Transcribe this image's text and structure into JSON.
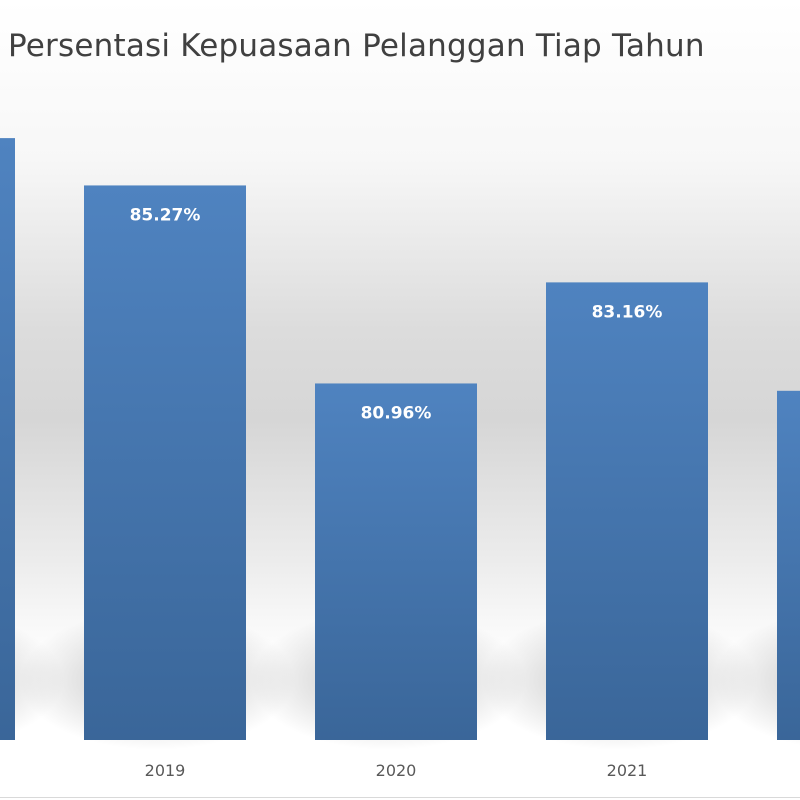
{
  "chart_data": {
    "type": "bar",
    "title": "Persentasi Kepuasaan Pelanggan Tiap Tahun",
    "xlabel": "",
    "ylabel": "",
    "categories": [
      "",
      "2019",
      "2020",
      "2021",
      ""
    ],
    "values": [
      86.3,
      85.27,
      80.96,
      83.16,
      80.8
    ],
    "data_labels": [
      "",
      "85.27%",
      "80.96%",
      "83.16%",
      ""
    ],
    "ylim": [
      73.2,
      88.0
    ],
    "grid": false,
    "legend": "none",
    "bar_color": "#4a7ebb",
    "bar_color_dark": "#3a6699",
    "label_color": "#ffffff",
    "tick_color": "#595959"
  }
}
